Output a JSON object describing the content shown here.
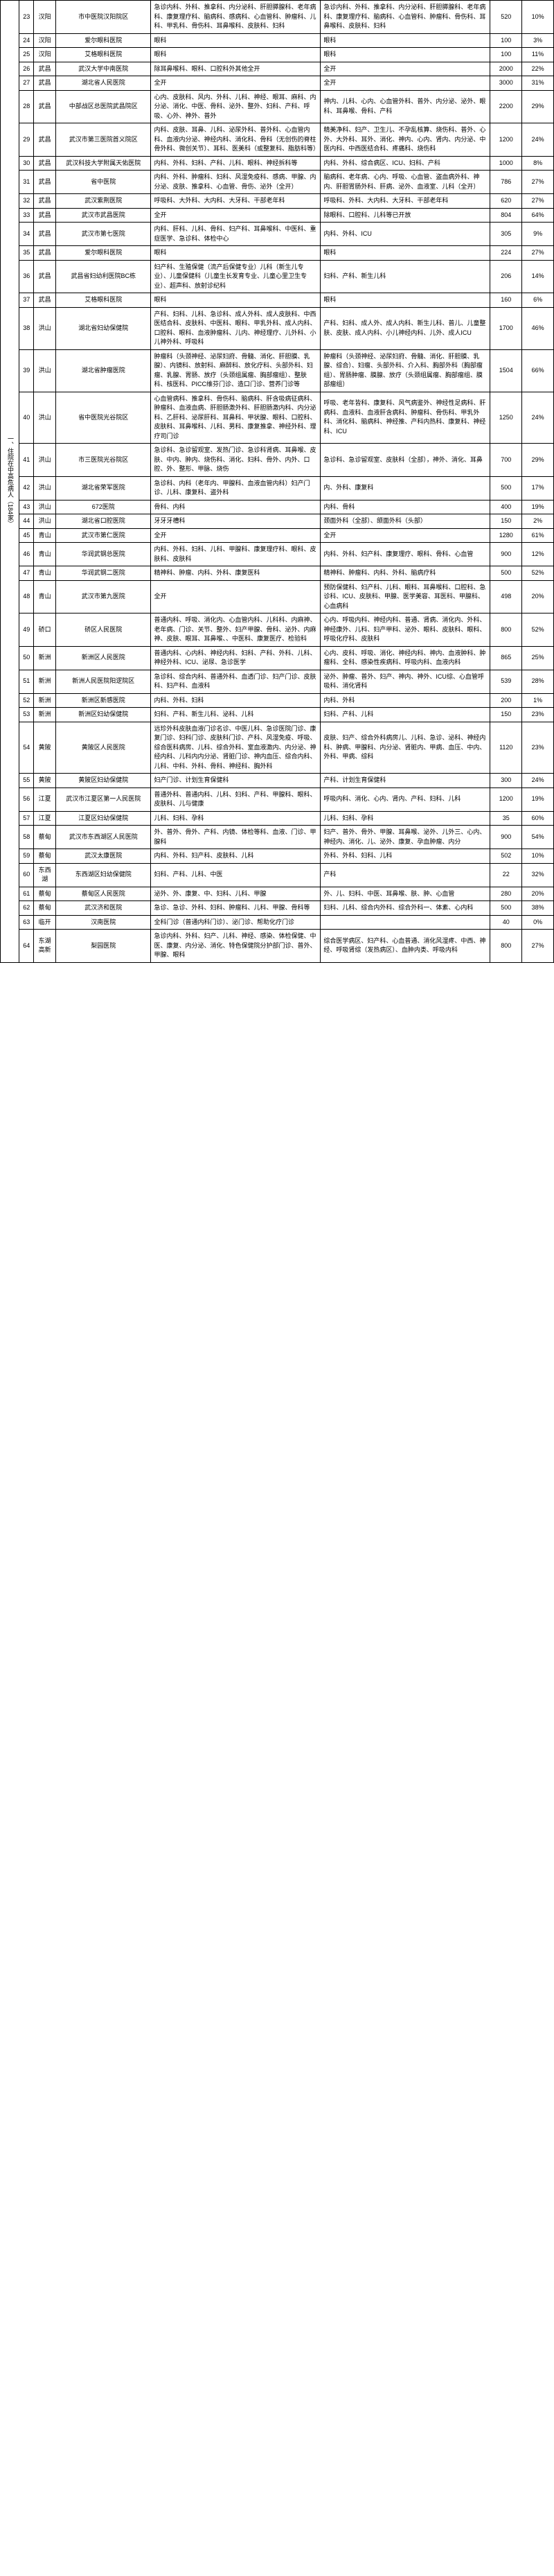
{
  "side_header": "一、住院在中高危病人（184家）",
  "rows": [
    {
      "idx": 23,
      "area": "汉阳",
      "hosp": "市中医院汉阳院区",
      "d1": "急诊内科、外科、推拿科、内分泌科、肝胆膵腺科、老年病科、康复理疗科、脑病科、感病科、心血管科、肿瘤科、儿科、甲乳科、骨伤科、耳鼻喉科、皮肤科、妇科",
      "d2": "急诊内科、外科、推拿科、内分泌科、肝胆膵腺科、老年病科、康复理疗科、脑病科、心血管科、肿瘤科、骨伤科、耳鼻喉科、皮肤科、妇科",
      "num": "520",
      "pct": "10%"
    },
    {
      "idx": 24,
      "area": "汉阳",
      "hosp": "爱尔眼科医院",
      "d1": "眼科",
      "d2": "眼科",
      "num": "100",
      "pct": "3%"
    },
    {
      "idx": 25,
      "area": "汉阳",
      "hosp": "艾格眼科医院",
      "d1": "眼科",
      "d2": "眼科",
      "num": "100",
      "pct": "11%"
    },
    {
      "idx": 26,
      "area": "武昌",
      "hosp": "武汉大学中南医院",
      "d1": "除耳鼻喉科、眼科、口腔科外其他全开",
      "d2": "全开",
      "num": "2000",
      "pct": "22%"
    },
    {
      "idx": 27,
      "area": "武昌",
      "hosp": "湖北省人民医院",
      "d1": "全开",
      "d2": "全开",
      "num": "3000",
      "pct": "31%"
    },
    {
      "idx": 28,
      "area": "武昌",
      "hosp": "中部战区总医院武昌院区",
      "d1": "心内、皮肤科、风内、外科、儿科、神经、眼耳、麻科、内分泌、消化、中医、骨科、泌外、整外、妇科、产科、呼吸、心外、神外、普外",
      "d2": "神内、儿科、心内、心血管外科、普外、内分泌、泌外、眼科、耳鼻喉、骨科、产科",
      "num": "2200",
      "pct": "29%"
    },
    {
      "idx": 29,
      "area": "武昌",
      "hosp": "武汉市第三医院首义院区",
      "d1": "内科、皮肤、耳鼻、儿科、泌尿外科、普外科、心血管内科、血液内分泌、神经内科、消化科、骨科（无创伤的脊柱骨外科、微创关节）、耳科、医美科（或整复科、脂肪科等）",
      "d2": "精美净科、妇产、卫生儿、不孕乱核算、烧伤科、普外、心外、大外科、耳外、消化、神内、心内、肾内、内分泌、中医内科、中西医结合科、疼痛科、烧伤科",
      "num": "1200",
      "pct": "24%"
    },
    {
      "idx": 30,
      "area": "武昌",
      "hosp": "武汉科技大学附属天佑医院",
      "d1": "内科、外科、妇科、产科、儿科、眼科、神经拆科等",
      "d2": "内科、外科、综合病区、ICU、妇科、产科",
      "num": "1000",
      "pct": "8%"
    },
    {
      "idx": 31,
      "area": "武昌",
      "hosp": "省中医院",
      "d1": "内科、外科、肿瘤科、妇科、风湿免疫科、感病、甲腺、内分泌、皮肤、推拿科、心血管、骨伤、泌外（全开）",
      "d2": "脑病科、老年病、心内、呼吸、心血管、盗血病外科、神内、肝胆胃肠外科、肝病、泌外、血液室、儿科（全开）",
      "num": "786",
      "pct": "27%"
    },
    {
      "idx": 32,
      "area": "武昌",
      "hosp": "武汉紫荆医院",
      "d1": "呼吸科、大外科、大内科、大牙科、干部老年科",
      "d2": "呼吸科、外科、大内科、大牙科、干部老年科",
      "num": "620",
      "pct": "27%"
    },
    {
      "idx": 33,
      "area": "武昌",
      "hosp": "武汉市武昌医院",
      "d1": "全开",
      "d2": "除眼科、口腔科、儿科等已开放",
      "num": "804",
      "pct": "64%"
    },
    {
      "idx": 34,
      "area": "武昌",
      "hosp": "武汉市第七医院",
      "d1": "内科、肝科、儿科、骨科、妇产科、耳鼻喉科、中医科、重症医学、急诊科、体检中心",
      "d2": "内科、外科、ICU",
      "num": "305",
      "pct": "9%"
    },
    {
      "idx": 35,
      "area": "武昌",
      "hosp": "爱尔眼科医院",
      "d1": "眼科",
      "d2": "眼科",
      "num": "224",
      "pct": "27%"
    },
    {
      "idx": 36,
      "area": "武昌",
      "hosp": "武昌省妇幼利医院BC栋",
      "d1": "妇产科、生殖保健（流产后保健专业）儿科（新生儿专业）、儿童保健科（儿童生长发育专业、儿童心里卫生专业）、超声科、放射诊纪科",
      "d2": "妇科、产科、新生儿科",
      "num": "206",
      "pct": "14%"
    },
    {
      "idx": 37,
      "area": "武昌",
      "hosp": "艾格眼科医院",
      "d1": "眼科",
      "d2": "眼科",
      "num": "160",
      "pct": "6%"
    },
    {
      "idx": 38,
      "area": "洪山",
      "hosp": "湖北省妇幼保健院",
      "d1": "产科、妇科、儿科、急诊科、成人外科、成人皮肤科、中西医结合科、皮肤科、中医科、眼科、甲乳外科、成人内科、口腔科、眼科、血液肿瘤科、儿内、神经理疗、儿外科、小儿神外科、呼吸科",
      "d2": "产科、妇科、成人外、成人内科、新生儿科、普儿、儿童整肤、皮肤、成人内科、小儿神经内科、儿外、成人ICU",
      "num": "1700",
      "pct": "46%"
    },
    {
      "idx": 39,
      "area": "洪山",
      "hosp": "湖北省肿瘤医院",
      "d1": "肿瘤科（头颈神经、泌尿妇府、骨髓、消化、肝胆膜、乳腺）、内镜科、放射科、麻醉科、放化疗科、头部外科、妇瘤、乳腺、胃肠、放疗（头颈组属瘤、胸部瘤组）、整肤科、核医科、PICC维芬门诊、造口门诊、营养门诊等",
      "d2": "肿瘤科（头颈神经、泌尿妇府、骨髓、消化、肝胆膜、乳腺、综合）、妇瘤、头部外科、介入科、胸部外科（胸部瘤组）、胃肠肿瘤、膜腺、放疗（头颈组属瘤、胸部瘤组、膜部瘤组）",
      "num": "1504",
      "pct": "66%"
    },
    {
      "idx": 40,
      "area": "洪山",
      "hosp": "省中医院光谷院区",
      "d1": "心血管病科、推拿科、骨伤科、脑病科、肝含吸病征病科、肿瘤科、血液血病、肝胆肠激外科、肝胆肠激内科、内分泌科、乙肝科、泌尿肝科、耳鼻科、甲状腺、眼科、口腔科、皮肤科、耳鼻喉科、儿科、男科、康复推拿、神经外科、理疗司门诊",
      "d2": "呼吸、老年皆科、康复科、风气病鉴外、神经性足病科、肝病科、血液科、血液肝含病科、肿瘤科、骨伤科、甲乳外科、消化科、脑病科、神经推、产科内热科、康复科、神经科、ICU",
      "num": "1250",
      "pct": "24%"
    },
    {
      "idx": 41,
      "area": "洪山",
      "hosp": "市三医院光谷院区",
      "d1": "急诊科、急诊留观室、发热门诊、急诊科肾病、耳鼻喉、皮肤、中内、肿内、烧伤科、消化、妇科、骨外、内外、口腔、外、整形、甲脉、烧伤",
      "d2": "急诊科、急诊留观室、皮肤科（全部），神外、消化、耳鼻",
      "num": "700",
      "pct": "29%"
    },
    {
      "idx": 42,
      "area": "洪山",
      "hosp": "湖北省荣军医院",
      "d1": "急诊科、内科（老年内、甲腺科、血液血管内科）妇产门诊、儿科、康复科、盗外科",
      "d2": "内、外科、康复科",
      "num": "500",
      "pct": "17%"
    },
    {
      "idx": 43,
      "area": "洪山",
      "hosp": "672医院",
      "d1": "骨科、内科",
      "d2": "内科、骨科",
      "num": "400",
      "pct": "19%"
    },
    {
      "idx": 44,
      "area": "洪山",
      "hosp": "湖北省口腔医院",
      "d1": "牙牙牙槽科",
      "d2": "颈面外科（全部）、颌面外科（头部）",
      "num": "150",
      "pct": "2%"
    },
    {
      "idx": 45,
      "area": "青山",
      "hosp": "武汉市第仁医院",
      "d1": "全开",
      "d2": "全开",
      "num": "1280",
      "pct": "61%"
    },
    {
      "idx": 46,
      "area": "青山",
      "hosp": "华润武钢总医院",
      "d1": "内科、外科、妇科、儿科、甲腺科、康复理疗科、眼科、皮肤科、皮肤科",
      "d2": "内科、外科、妇产科、康复理疗、眼科、骨科、心血管",
      "num": "900",
      "pct": "12%"
    },
    {
      "idx": 47,
      "area": "青山",
      "hosp": "华润武钢二医院",
      "d1": "精神科、肿瘤、内科、外科、康复医科",
      "d2": "精神科、肿瘤科、内科、外科、脑病疗科",
      "num": "500",
      "pct": "52%"
    },
    {
      "idx": 48,
      "area": "青山",
      "hosp": "武汉市第九医院",
      "d1": "全开",
      "d2": "预防保健科、妇产科、儿科、眼科、耳鼻喉科、口腔科、急诊科、ICU、皮肤科、甲腺、医学美容、耳医科、甲腺科、心血病科",
      "num": "498",
      "pct": "20%"
    },
    {
      "idx": 49,
      "area": "硚口",
      "hosp": "硚区人民医院",
      "d1": "普通内科、呼吸、消化内、心血管内科、儿科科、内麻神、老年病、门诊、关节、整外、妇产甲腺、骨科、泌外、内麻神、皮肤、眼耳、耳鼻喉、、中医科、康复医疗、检验科",
      "d2": "心内、呼吸内科、神经内科、普通、肾病、消化内、外科、神经康外、儿科、妇产甲科、泌外、眼科、皮肤科、眼科、呼吸化疗科、皮肤科",
      "num": "800",
      "pct": "52%"
    },
    {
      "idx": 50,
      "area": "新洲",
      "hosp": "新洲区人民医院",
      "d1": "普通内科、心内科、神经内科、妇科、产科、外科、儿科、神经外科、ICU、泌尿、急诊医学",
      "d2": "心内、皮科、呼吸、消化、神经内科、神内、血液肿科、肿瘤科、全科、感染性疾病科、呼吸内科、血液内科",
      "num": "865",
      "pct": "25%"
    },
    {
      "idx": 51,
      "area": "新洲",
      "hosp": "新洲人民医院阳逻院区",
      "d1": "急诊科、综合内科、普通外科、血透门诊、妇产门诊、皮肤科、妇产科、血液科",
      "d2": "泌外、肿瘤、普外、妇产、神内、神外、ICU综、心血管呼吸科、消化肾科",
      "num": "539",
      "pct": "28%"
    },
    {
      "idx": 52,
      "area": "新洲",
      "hosp": "新洲区新感医院",
      "d1": "内科、外科、妇科",
      "d2": "内科、外科",
      "num": "200",
      "pct": "1%"
    },
    {
      "idx": 53,
      "area": "新洲",
      "hosp": "新洲区妇幼保健院",
      "d1": "妇科、产科、新生儿科、泌科、儿科",
      "d2": "妇科、产科、儿科",
      "num": "150",
      "pct": "23%"
    },
    {
      "idx": 54,
      "area": "黄陂",
      "hosp": "黄陂区人民医院",
      "d1": "远珍外科皮肤血液门诊名诊、中医儿科、急诊医院门诊、康复门诊、妇科门诊、皮肤科门诊、产科、风湿免疫、呼吸、综合医科病房、儿科、综合外科、室血液激内、内分泌、神经内科、儿科内内分泌、肾脏门诊、神内血压、综合内科、儿科、中科、外科、骨科、神经科、胸外科",
      "d2": "皮肤、妇产、综合外科病房儿、儿科、急诊、泌科、神经内科、肿病、甲腺科、内分泌、肾脏内、甲病、血压、中内、外科、甲病、综科",
      "num": "1120",
      "pct": "23%"
    },
    {
      "idx": 55,
      "area": "黄陂",
      "hosp": "黄陂区妇幼保健院",
      "d1": "妇产门诊、计划生育保健科",
      "d2": "产科、计划生育保健科",
      "num": "300",
      "pct": "24%"
    },
    {
      "idx": 56,
      "area": "江夏",
      "hosp": "武汉市江夏区第一人民医院",
      "d1": "普通外科、普通内科、儿科、妇科、产科、甲腺科、眼科、皮肤科、儿与健康",
      "d2": "呼吸内科、消化、心内、肾内、产科、妇科、儿科",
      "num": "1200",
      "pct": "19%"
    },
    {
      "idx": 57,
      "area": "江夏",
      "hosp": "江夏区妇幼保健院",
      "d1": "儿科、妇科、孕科",
      "d2": "儿科、妇科、孕科",
      "num": "35",
      "pct": "60%"
    },
    {
      "idx": 58,
      "area": "蔡甸",
      "hosp": "武汉市东西湖区人民医院",
      "d1": "外、普外、骨外、产科、内镜、体检等科、血液、门诊、甲腺科",
      "d2": "妇产、普外、骨外、甲腺、耳鼻喉、泌外、儿外三、心内、神经内、消化、儿、泌外、康复、孕血肿瘤、内分",
      "num": "900",
      "pct": "54%"
    },
    {
      "idx": 59,
      "area": "蔡甸",
      "hosp": "武汉太康医院",
      "d1": "内科、外科、妇产科、皮肤科、儿科",
      "d2": "外科、外科、妇科、儿科",
      "num": "502",
      "pct": "10%"
    },
    {
      "idx": 60,
      "area": "东西湖",
      "hosp": "东西湖区妇幼保健院",
      "d1": "妇科、产科、儿科、中医",
      "d2": "产科",
      "num": "22",
      "pct": "32%"
    },
    {
      "idx": 61,
      "area": "蔡甸",
      "hosp": "蔡甸区人民医院",
      "d1": "泌外、外、康复、中、妇科、儿科、甲腺",
      "d2": "外、儿、妇科、中医、耳鼻喉、肤、肿、心血管",
      "num": "280",
      "pct": "20%"
    },
    {
      "idx": 62,
      "area": "蔡甸",
      "hosp": "武汉济和医院",
      "d1": "急诊、急诊、外科、妇科、肿瘤科、儿科、甲腺、骨科等",
      "d2": "妇科、儿科、综合内外科、综合外科一、体素、心内科",
      "num": "500",
      "pct": "38%"
    },
    {
      "idx": 63,
      "area": "临开",
      "hosp": "汉南医院",
      "d1": "全科门诊（普通内科门诊）、泌门诊、帮助化疗门诊",
      "d2": "",
      "num": "40",
      "pct": "0%"
    },
    {
      "idx": 64,
      "area": "东湖高新",
      "hosp": "梨园医院",
      "d1": "急诊内科、外科、妇产、儿科、神经、感染、体检保健、中医、康复、内分泌、消化、特色保健院分护部门诊、普外、甲腺、眼科",
      "d2": "综合医学病区、妇产科、心血普通、消化风湿疼、中西、神经、呼吸肾综（发热病区）、血肿内类、呼吸内科",
      "num": "800",
      "pct": "27%"
    }
  ]
}
